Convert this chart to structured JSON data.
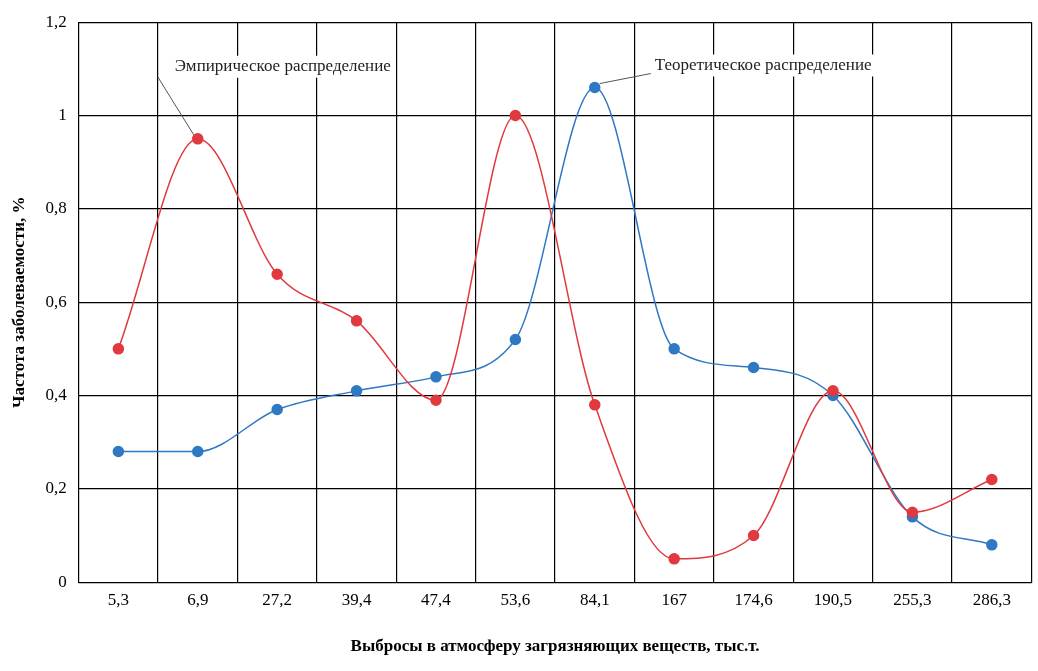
{
  "chart_data": {
    "type": "line",
    "xlabel": "Выбросы в атмосферу загрязняющих веществ, тыс.т.",
    "ylabel": "Частота заболеваемости, %",
    "categories": [
      "5,3",
      "6,9",
      "27,2",
      "39,4",
      "47,4",
      "53,6",
      "84,1",
      "167",
      "174,6",
      "190,5",
      "255,3",
      "286,3"
    ],
    "series": [
      {
        "color": "#e0393e",
        "values": [
          0.5,
          0.95,
          0.66,
          0.56,
          0.39,
          1.0,
          0.38,
          0.05,
          0.1,
          0.41,
          0.15,
          0.22
        ]
      },
      {
        "color": "#2f78c4",
        "values": [
          0.28,
          0.28,
          0.37,
          0.41,
          0.44,
          0.52,
          1.06,
          0.5,
          0.46,
          0.4,
          0.14,
          0.08
        ]
      }
    ],
    "ylim": [
      0,
      1.2
    ],
    "yticks": [
      {
        "value": 0,
        "label": "0"
      },
      {
        "value": 0.2,
        "label": "0,2"
      },
      {
        "value": 0.4,
        "label": "0,4"
      },
      {
        "value": 0.6,
        "label": "0,6"
      },
      {
        "value": 0.8,
        "label": "0,8"
      },
      {
        "value": 1,
        "label": "1"
      },
      {
        "value": 1.2,
        "label": "1,2"
      }
    ],
    "annotations": [
      {
        "text": "Эмпирическое распределение",
        "x": "6,9",
        "y": 0.95
      },
      {
        "text": "Теоретическое распределение",
        "x": "84,1",
        "y": 1.06
      }
    ],
    "grid": true,
    "legend": false,
    "marker": "circle",
    "line_style": "solid"
  }
}
